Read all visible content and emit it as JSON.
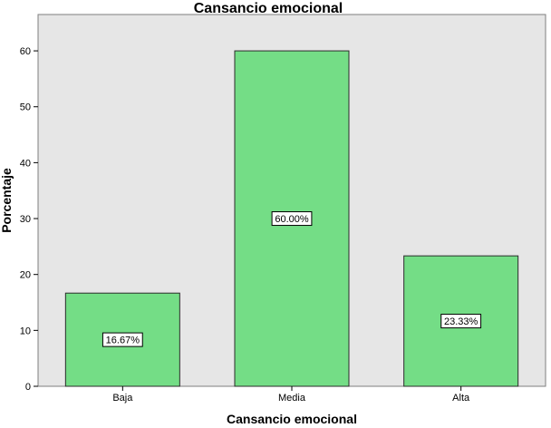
{
  "chart_data": {
    "type": "bar",
    "title": "Cansancio emocional",
    "xlabel": "Cansancio emocional",
    "ylabel": "Porcentaje",
    "categories": [
      "Baja",
      "Media",
      "Alta"
    ],
    "values": [
      16.67,
      60.0,
      23.33
    ],
    "data_labels": [
      "16.67%",
      "60.00%",
      "23.33%"
    ],
    "ylim": [
      0,
      66.5
    ],
    "yticks": [
      0,
      10,
      20,
      30,
      40,
      50,
      60
    ],
    "ytick_labels": [
      "0",
      "10",
      "20",
      "30",
      "40",
      "50",
      "60"
    ],
    "grid": false,
    "colors": {
      "bar_fill": "#74DD86",
      "bar_stroke": "#2b2b2b",
      "plot_background": "#E6E6E6",
      "label_box_fill": "#FFFFFF"
    }
  }
}
